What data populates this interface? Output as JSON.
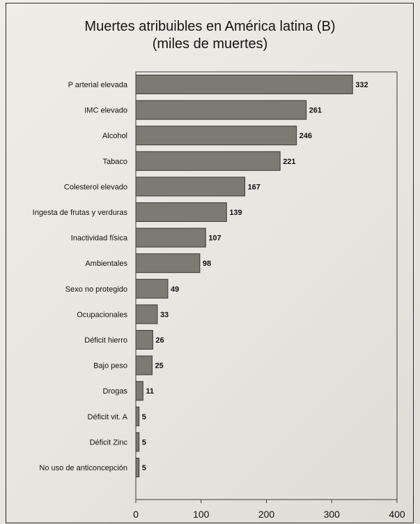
{
  "chart_data": {
    "type": "bar",
    "orientation": "horizontal",
    "title_line1": "Muertes atribuibles en América latina (B)",
    "title_line2": "(miles de muertes)",
    "categories": [
      "P arterial elevada",
      "IMC elevado",
      "Alcohol",
      "Tabaco",
      "Colesterol elevado",
      "Ingesta de frutas y verduras",
      "Inactividad física",
      "Ambientales",
      "Sexo no protegido",
      "Ocupacionales",
      "Déficit hierro",
      "Bajo peso",
      "Drogas",
      "Déficit vit. A",
      "Déficit Zinc",
      "No uso de anticoncepción"
    ],
    "values": [
      332,
      261,
      246,
      221,
      167,
      139,
      107,
      98,
      49,
      33,
      26,
      25,
      11,
      5,
      5,
      5
    ],
    "value_labels": [
      "332",
      "261",
      "246",
      "221",
      "167",
      "139",
      "107",
      "98",
      "49",
      "33",
      "26",
      "25",
      "11",
      "5",
      "5",
      "5"
    ],
    "xlim": [
      0,
      400
    ],
    "xticks": [
      0,
      100,
      200,
      300,
      400
    ],
    "xtick_labels": [
      "0",
      "100",
      "200",
      "300",
      "400"
    ],
    "xlabel": "",
    "ylabel": "",
    "grid": false,
    "legend": "none",
    "bar_color": "#7b7b73",
    "bar_edge_color": "#3a3a36"
  }
}
